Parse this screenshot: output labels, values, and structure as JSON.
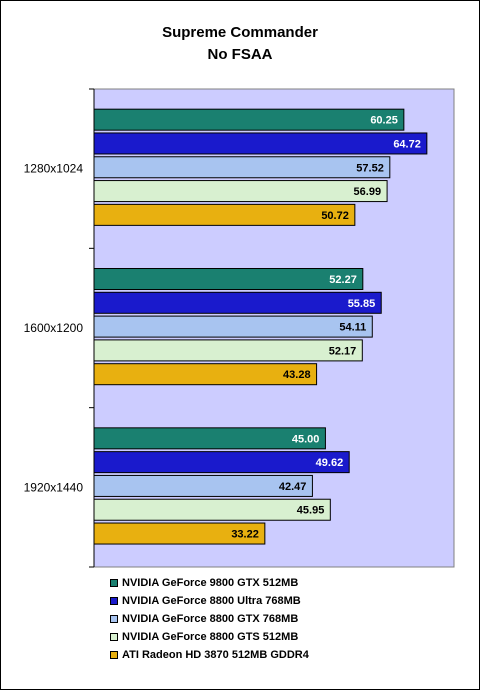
{
  "chart_data": {
    "type": "bar",
    "orientation": "horizontal",
    "title": "Supreme Commander",
    "subtitle": "No FSAA",
    "categories": [
      "1280x1024",
      "1600x1200",
      "1920x1440"
    ],
    "xlim": [
      0,
      70
    ],
    "grid": false,
    "legend_position": "bottom",
    "plot_background": "#ccccff",
    "series": [
      {
        "name": "NVIDIA GeForce 9800 GTX 512MB",
        "color": "#1a8070",
        "label_color": "#ffffff",
        "values": [
          60.25,
          52.27,
          45.0
        ]
      },
      {
        "name": "NVIDIA GeForce 8800 Ultra 768MB",
        "color": "#1a1acc",
        "label_color": "#ffffff",
        "values": [
          64.72,
          55.85,
          49.62
        ]
      },
      {
        "name": "NVIDIA GeForce 8800 GTX 768MB",
        "color": "#a8c4f0",
        "label_color": "#000000",
        "values": [
          57.52,
          54.11,
          42.47
        ]
      },
      {
        "name": "NVIDIA GeForce 8800 GTS 512MB",
        "color": "#d8f0d0",
        "label_color": "#000000",
        "values": [
          56.99,
          52.17,
          45.95
        ]
      },
      {
        "name": "ATI Radeon HD 3870 512MB GDDR4",
        "color": "#e8b010",
        "label_color": "#000000",
        "values": [
          50.72,
          43.28,
          33.22
        ]
      }
    ],
    "value_labels": [
      [
        "60.25",
        "52.27",
        "45.00"
      ],
      [
        "64.72",
        "55.85",
        "49.62"
      ],
      [
        "57.52",
        "54.11",
        "42.47"
      ],
      [
        "56.99",
        "52.17",
        "45.95"
      ],
      [
        "50.72",
        "43.28",
        "33.22"
      ]
    ]
  }
}
